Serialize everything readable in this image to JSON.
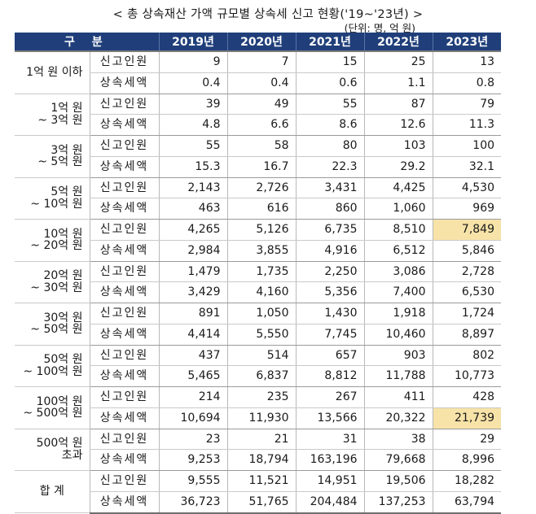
{
  "title": "< 총 상속재산 가액 규모별 상속세 신고 현황('19~'23년) >",
  "unit": "(단위: 명, 억 원)",
  "header": {
    "category": "구 분",
    "years": [
      "2019년",
      "2020년",
      "2021년",
      "2022년",
      "2023년"
    ]
  },
  "highlight_color": "#f7e3a8",
  "header_color": "#203f7a",
  "groups": [
    {
      "label_line1": "1억 원 이하",
      "label_line2": "",
      "rows": [
        {
          "sub": "신고인원",
          "values": [
            "9",
            "7",
            "15",
            "25",
            "13"
          ]
        },
        {
          "sub": "상속세액",
          "values": [
            "0.4",
            "0.4",
            "0.6",
            "1.1",
            "0.8"
          ]
        }
      ]
    },
    {
      "label_line1": "1억 원",
      "label_line2": "~ 3억 원",
      "rows": [
        {
          "sub": "신고인원",
          "values": [
            "39",
            "49",
            "55",
            "87",
            "79"
          ]
        },
        {
          "sub": "상속세액",
          "values": [
            "4.8",
            "6.6",
            "8.6",
            "12.6",
            "11.3"
          ]
        }
      ]
    },
    {
      "label_line1": "3억 원",
      "label_line2": "~ 5억 원",
      "rows": [
        {
          "sub": "신고인원",
          "values": [
            "55",
            "58",
            "80",
            "103",
            "100"
          ]
        },
        {
          "sub": "상속세액",
          "values": [
            "15.3",
            "16.7",
            "22.3",
            "29.2",
            "32.1"
          ]
        }
      ]
    },
    {
      "label_line1": "5억 원",
      "label_line2": "~ 10억 원",
      "rows": [
        {
          "sub": "신고인원",
          "values": [
            "2,143",
            "2,726",
            "3,431",
            "4,425",
            "4,530"
          ]
        },
        {
          "sub": "상속세액",
          "values": [
            "463",
            "616",
            "860",
            "1,060",
            "969"
          ]
        }
      ]
    },
    {
      "label_line1": "10억 원",
      "label_line2": "~ 20억 원",
      "rows": [
        {
          "sub": "신고인원",
          "values": [
            "4,265",
            "5,126",
            "6,735",
            "8,510",
            "7,849"
          ],
          "highlight": [
            4
          ]
        },
        {
          "sub": "상속세액",
          "values": [
            "2,984",
            "3,855",
            "4,916",
            "6,512",
            "5,846"
          ]
        }
      ]
    },
    {
      "label_line1": "20억 원",
      "label_line2": "~ 30억 원",
      "rows": [
        {
          "sub": "신고인원",
          "values": [
            "1,479",
            "1,735",
            "2,250",
            "3,086",
            "2,728"
          ]
        },
        {
          "sub": "상속세액",
          "values": [
            "3,429",
            "4,160",
            "5,356",
            "7,400",
            "6,530"
          ]
        }
      ]
    },
    {
      "label_line1": "30억 원",
      "label_line2": "~ 50억 원",
      "rows": [
        {
          "sub": "신고인원",
          "values": [
            "891",
            "1,050",
            "1,430",
            "1,918",
            "1,724"
          ]
        },
        {
          "sub": "상속세액",
          "values": [
            "4,414",
            "5,550",
            "7,745",
            "10,460",
            "8,897"
          ]
        }
      ]
    },
    {
      "label_line1": "50억 원",
      "label_line2": "~ 100억 원",
      "rows": [
        {
          "sub": "신고인원",
          "values": [
            "437",
            "514",
            "657",
            "903",
            "802"
          ]
        },
        {
          "sub": "상속세액",
          "values": [
            "5,465",
            "6,837",
            "8,812",
            "11,788",
            "10,773"
          ]
        }
      ]
    },
    {
      "label_line1": "100억 원",
      "label_line2": "~ 500억 원",
      "rows": [
        {
          "sub": "신고인원",
          "values": [
            "214",
            "235",
            "267",
            "411",
            "428"
          ]
        },
        {
          "sub": "상속세액",
          "values": [
            "10,694",
            "11,930",
            "13,566",
            "20,322",
            "21,739"
          ],
          "highlight": [
            4
          ]
        }
      ]
    },
    {
      "label_line1": "500억 원",
      "label_line2": "초과",
      "rows": [
        {
          "sub": "신고인원",
          "values": [
            "23",
            "21",
            "31",
            "38",
            "29"
          ]
        },
        {
          "sub": "상속세액",
          "values": [
            "9,253",
            "18,794",
            "163,196",
            "79,668",
            "8,996"
          ]
        }
      ]
    },
    {
      "label_line1": "합 계",
      "label_line2": "",
      "center": true,
      "rows": [
        {
          "sub": "신고인원",
          "values": [
            "9,555",
            "11,521",
            "14,951",
            "19,506",
            "18,282"
          ]
        },
        {
          "sub": "상속세액",
          "values": [
            "36,723",
            "51,765",
            "204,484",
            "137,253",
            "63,794"
          ]
        }
      ]
    }
  ]
}
